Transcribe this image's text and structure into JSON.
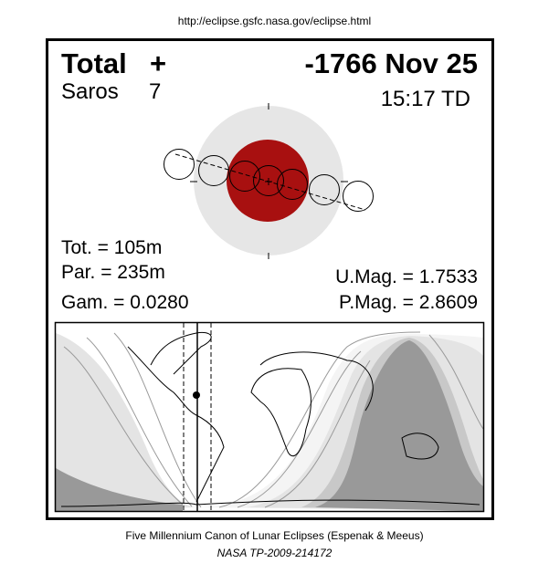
{
  "header_url": "http://eclipse.gsfc.nasa.gov/eclipse.html",
  "eclipse": {
    "type": "Total",
    "type_symbol": "+",
    "date": "-1766 Nov 25",
    "saros_label": "Saros",
    "saros_number": "7",
    "time": "15:17 TD",
    "tot": "Tot. = 105m",
    "par": "Par. = 235m",
    "gam": "Gam. = 0.0280",
    "umag": "U.Mag. = 1.7533",
    "pmag": "P.Mag. = 2.8609"
  },
  "colors": {
    "umbra": "#a81010",
    "penumbra": "#e6e6e6",
    "map_dark": "#999999",
    "map_mid": "#c8c8c8",
    "map_light": "#e4e4e4",
    "map_lighter": "#f4f4f4"
  },
  "footer": {
    "line1": "Five Millennium Canon of Lunar Eclipses (Espenak & Meeus)",
    "line2": "NASA TP-2009-214172"
  }
}
